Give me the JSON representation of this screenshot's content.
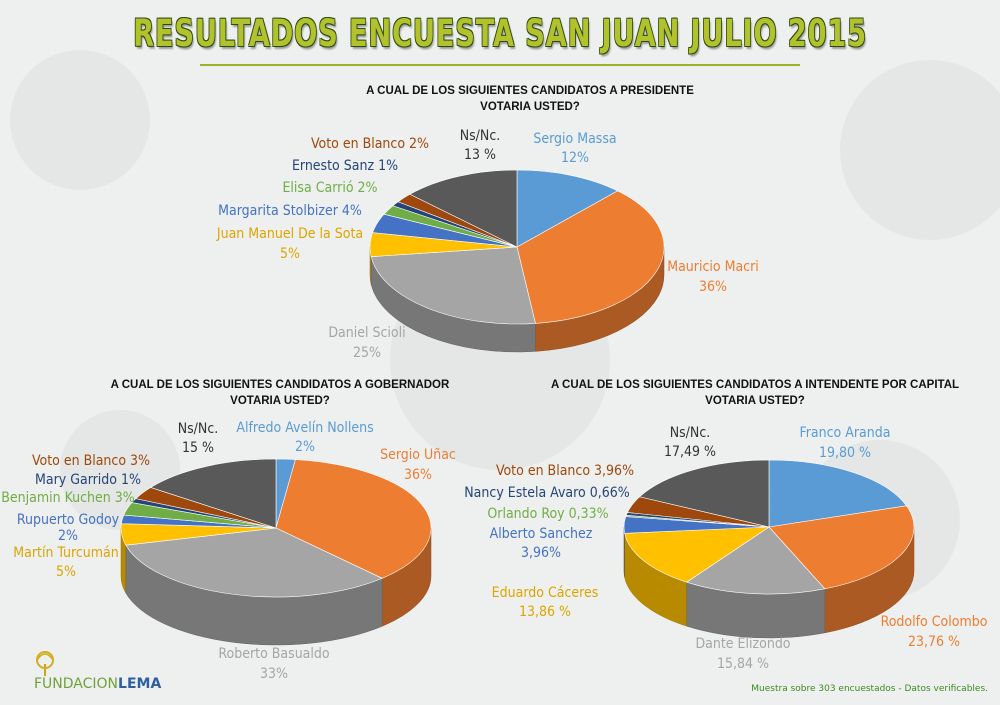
{
  "title": "RESULTADOS ENCUESTA SAN JUAN JULIO 2015",
  "footer_note": "Muestra sobre 303 encuestados - Datos verificables.",
  "logo": {
    "part1": "FUNDACION",
    "part2": "LEMA"
  },
  "chart_data": [
    {
      "type": "pie",
      "title_lines": [
        "A CUAL DE LOS SIGUIENTES CANDIDATOS A PRESIDENTE",
        "VOTARIA USTED?"
      ],
      "slices": [
        {
          "name": "Sergio Massa",
          "value": 12,
          "value_label": "12%",
          "color": "#5a9bd5"
        },
        {
          "name": "Mauricio Macri",
          "value": 36,
          "value_label": "36%",
          "color": "#ed7d31"
        },
        {
          "name": "Daniel Scioli",
          "value": 25,
          "value_label": "25%",
          "color": "#a5a5a5"
        },
        {
          "name": "Juan Manuel De la Sota",
          "value": 5,
          "value_label": "5%",
          "color": "#ffc000"
        },
        {
          "name": "Margarita Stolbizer",
          "value": 4,
          "value_label": "4%",
          "color": "#4472c4"
        },
        {
          "name": "Elisa Carrió",
          "value": 2,
          "value_label": "2%",
          "color": "#70ad47"
        },
        {
          "name": "Ernesto Sanz",
          "value": 1,
          "value_label": "1%",
          "color": "#264478"
        },
        {
          "name": "Voto en Blanco",
          "value": 2,
          "value_label": "2%",
          "color": "#9e480e"
        },
        {
          "name": "Ns/Nc.",
          "value": 13,
          "value_label": "13 %",
          "color": "#595959"
        }
      ]
    },
    {
      "type": "pie",
      "title_lines": [
        "A CUAL DE LOS SIGUIENTES CANDIDATOS A GOBERNADOR",
        "VOTARIA USTED?"
      ],
      "slices": [
        {
          "name": "Alfredo Avelín Nollens",
          "value": 2,
          "value_label": "2%",
          "color": "#5a9bd5"
        },
        {
          "name": "Sergio Uñac",
          "value": 36,
          "value_label": "36%",
          "color": "#ed7d31"
        },
        {
          "name": "Roberto Basualdo",
          "value": 33,
          "value_label": "33%",
          "color": "#a5a5a5"
        },
        {
          "name": "Martín Turcumán",
          "value": 5,
          "value_label": "5%",
          "color": "#ffc000"
        },
        {
          "name": "Rupuerto Godoy",
          "value": 2,
          "value_label": "2%",
          "color": "#4472c4"
        },
        {
          "name": "Benjamin Kuchen",
          "value": 3,
          "value_label": "3%",
          "color": "#70ad47"
        },
        {
          "name": "Mary Garrido",
          "value": 1,
          "value_label": "1%",
          "color": "#264478"
        },
        {
          "name": "Voto en Blanco",
          "value": 3,
          "value_label": "3%",
          "color": "#9e480e"
        },
        {
          "name": "Ns/Nc.",
          "value": 15,
          "value_label": "15 %",
          "color": "#595959"
        }
      ]
    },
    {
      "type": "pie",
      "title_lines": [
        "A CUAL DE LOS SIGUIENTES CANDIDATOS A INTENDENTE POR CAPITAL",
        "VOTARIA USTED?"
      ],
      "slices": [
        {
          "name": "Franco Aranda",
          "value": 19.8,
          "value_label": "19,80 %",
          "color": "#5a9bd5"
        },
        {
          "name": "Rodolfo Colombo",
          "value": 23.76,
          "value_label": "23,76 %",
          "color": "#ed7d31"
        },
        {
          "name": "Dante Elizondo",
          "value": 15.84,
          "value_label": "15,84 %",
          "color": "#a5a5a5"
        },
        {
          "name": "Eduardo Cáceres",
          "value": 13.86,
          "value_label": "13,86 %",
          "color": "#ffc000"
        },
        {
          "name": "Alberto Sanchez",
          "value": 3.96,
          "value_label": "3,96%",
          "color": "#4472c4"
        },
        {
          "name": "Orlando Roy",
          "value": 0.33,
          "value_label": "0,33%",
          "color": "#70ad47"
        },
        {
          "name": "Nancy Estela Avaro",
          "value": 0.66,
          "value_label": "0,66%",
          "color": "#264478"
        },
        {
          "name": "Voto en Blanco",
          "value": 3.96,
          "value_label": "3,96%",
          "color": "#9e480e"
        },
        {
          "name": "Ns/Nc.",
          "value": 17.49,
          "value_label": "17,49 %",
          "color": "#595959"
        }
      ]
    }
  ]
}
